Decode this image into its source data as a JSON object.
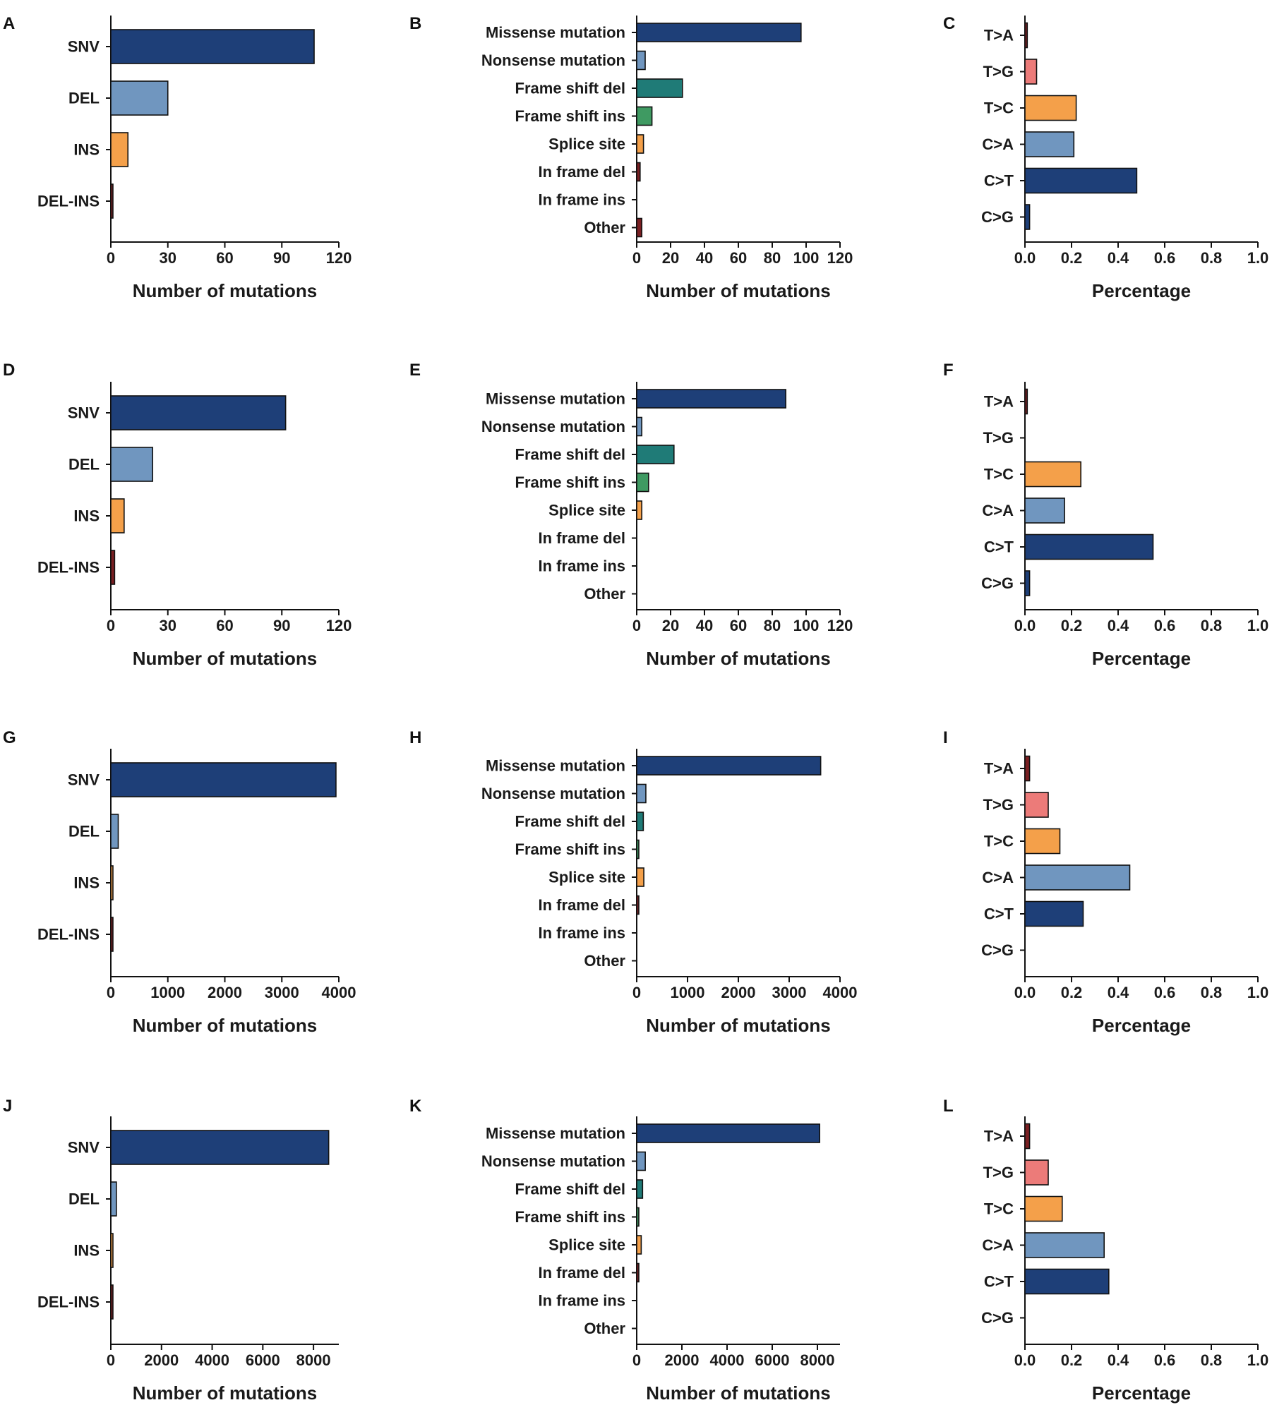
{
  "colors": {
    "navy": "#1e3f78",
    "lightblue": "#7096bf",
    "orange": "#f4a04a",
    "darkred": "#7a1f22",
    "teal": "#1f7b77",
    "green": "#3f9a62",
    "pink": "#ec7b79"
  },
  "chart_data": [
    {
      "id": "A",
      "type": "bar",
      "orientation": "horizontal",
      "categories": [
        "SNV",
        "DEL",
        "INS",
        "DEL-INS"
      ],
      "values": [
        107,
        30,
        9,
        1
      ],
      "colors": [
        "navy",
        "lightblue",
        "orange",
        "darkred"
      ],
      "xlim": [
        0,
        120
      ],
      "xticks": [
        "0",
        "30",
        "60",
        "90",
        "120"
      ],
      "xlabel": "Number of mutations"
    },
    {
      "id": "B",
      "type": "bar",
      "orientation": "horizontal",
      "categories": [
        "Missense mutation",
        "Nonsense mutation",
        "Frame shift del",
        "Frame shift ins",
        "Splice site",
        "In frame del",
        "In frame ins",
        "Other"
      ],
      "values": [
        97,
        5,
        27,
        9,
        4,
        2,
        0,
        3
      ],
      "colors": [
        "navy",
        "lightblue",
        "teal",
        "green",
        "orange",
        "darkred",
        "darkred",
        "darkred"
      ],
      "xlim": [
        0,
        120
      ],
      "xticks": [
        "0",
        "20",
        "40",
        "60",
        "80",
        "100",
        "120"
      ],
      "xlabel": "Number of mutations"
    },
    {
      "id": "C",
      "type": "bar",
      "orientation": "horizontal",
      "categories": [
        "T>A",
        "T>G",
        "T>C",
        "C>A",
        "C>T",
        "C>G"
      ],
      "values": [
        0.01,
        0.05,
        0.22,
        0.21,
        0.48,
        0.02
      ],
      "colors": [
        "darkred",
        "pink",
        "orange",
        "lightblue",
        "navy",
        "navy"
      ],
      "xlim": [
        0,
        1
      ],
      "xticks": [
        "0.0",
        "0.2",
        "0.4",
        "0.6",
        "0.8",
        "1.0"
      ],
      "xlabel": "Percentage"
    },
    {
      "id": "D",
      "type": "bar",
      "orientation": "horizontal",
      "categories": [
        "SNV",
        "DEL",
        "INS",
        "DEL-INS"
      ],
      "values": [
        92,
        22,
        7,
        2
      ],
      "colors": [
        "navy",
        "lightblue",
        "orange",
        "darkred"
      ],
      "xlim": [
        0,
        120
      ],
      "xticks": [
        "0",
        "30",
        "60",
        "90",
        "120"
      ],
      "xlabel": "Number of mutations"
    },
    {
      "id": "E",
      "type": "bar",
      "orientation": "horizontal",
      "categories": [
        "Missense mutation",
        "Nonsense mutation",
        "Frame shift del",
        "Frame shift ins",
        "Splice site",
        "In frame del",
        "In frame ins",
        "Other"
      ],
      "values": [
        88,
        3,
        22,
        7,
        3,
        0,
        0,
        0
      ],
      "colors": [
        "navy",
        "lightblue",
        "teal",
        "green",
        "orange",
        "darkred",
        "darkred",
        "darkred"
      ],
      "xlim": [
        0,
        120
      ],
      "xticks": [
        "0",
        "20",
        "40",
        "60",
        "80",
        "100",
        "120"
      ],
      "xlabel": "Number of mutations"
    },
    {
      "id": "F",
      "type": "bar",
      "orientation": "horizontal",
      "categories": [
        "T>A",
        "T>G",
        "T>C",
        "C>A",
        "C>T",
        "C>G"
      ],
      "values": [
        0.01,
        0,
        0.24,
        0.17,
        0.55,
        0.02
      ],
      "colors": [
        "darkred",
        "pink",
        "orange",
        "lightblue",
        "navy",
        "navy"
      ],
      "xlim": [
        0,
        1
      ],
      "xticks": [
        "0.0",
        "0.2",
        "0.4",
        "0.6",
        "0.8",
        "1.0"
      ],
      "xlabel": "Percentage"
    },
    {
      "id": "G",
      "type": "bar",
      "orientation": "horizontal",
      "categories": [
        "SNV",
        "DEL",
        "INS",
        "DEL-INS"
      ],
      "values": [
        3950,
        130,
        15,
        5
      ],
      "colors": [
        "navy",
        "lightblue",
        "orange",
        "darkred"
      ],
      "xlim": [
        0,
        4000
      ],
      "xticks": [
        "0",
        "1000",
        "2000",
        "3000",
        "4000"
      ],
      "xlabel": "Number of mutations"
    },
    {
      "id": "H",
      "type": "bar",
      "orientation": "horizontal",
      "categories": [
        "Missense mutation",
        "Nonsense mutation",
        "Frame shift del",
        "Frame shift ins",
        "Splice site",
        "In frame del",
        "In frame ins",
        "Other"
      ],
      "values": [
        3620,
        180,
        130,
        10,
        140,
        5,
        0,
        0
      ],
      "colors": [
        "navy",
        "lightblue",
        "teal",
        "green",
        "orange",
        "darkred",
        "darkred",
        "darkred"
      ],
      "xlim": [
        0,
        4000
      ],
      "xticks": [
        "0",
        "1000",
        "2000",
        "3000",
        "4000"
      ],
      "xlabel": "Number of mutations"
    },
    {
      "id": "I",
      "type": "bar",
      "orientation": "horizontal",
      "categories": [
        "T>A",
        "T>G",
        "T>C",
        "C>A",
        "C>T",
        "C>G"
      ],
      "values": [
        0.02,
        0.1,
        0.15,
        0.45,
        0.25,
        0
      ],
      "colors": [
        "darkred",
        "pink",
        "orange",
        "lightblue",
        "navy",
        "navy"
      ],
      "xlim": [
        0,
        1
      ],
      "xticks": [
        "0.0",
        "0.2",
        "0.4",
        "0.6",
        "0.8",
        "1.0"
      ],
      "xlabel": "Percentage"
    },
    {
      "id": "J",
      "type": "bar",
      "orientation": "horizontal",
      "categories": [
        "SNV",
        "DEL",
        "INS",
        "DEL-INS"
      ],
      "values": [
        8600,
        220,
        30,
        10
      ],
      "colors": [
        "navy",
        "lightblue",
        "orange",
        "darkred"
      ],
      "xlim": [
        0,
        9000
      ],
      "xticks": [
        "0",
        "2000",
        "4000",
        "6000",
        "8000"
      ],
      "xlabel": "Number of mutations"
    },
    {
      "id": "K",
      "type": "bar",
      "orientation": "horizontal",
      "categories": [
        "Missense mutation",
        "Nonsense mutation",
        "Frame shift del",
        "Frame shift ins",
        "Splice site",
        "In frame del",
        "In frame ins",
        "Other"
      ],
      "values": [
        8100,
        380,
        260,
        20,
        200,
        10,
        0,
        0
      ],
      "colors": [
        "navy",
        "lightblue",
        "teal",
        "green",
        "orange",
        "darkred",
        "darkred",
        "darkred"
      ],
      "xlim": [
        0,
        9000
      ],
      "xticks": [
        "0",
        "2000",
        "4000",
        "6000",
        "8000"
      ],
      "xlabel": "Number of mutations"
    },
    {
      "id": "L",
      "type": "bar",
      "orientation": "horizontal",
      "categories": [
        "T>A",
        "T>G",
        "T>C",
        "C>A",
        "C>T",
        "C>G"
      ],
      "values": [
        0.02,
        0.1,
        0.16,
        0.34,
        0.36,
        0
      ],
      "colors": [
        "darkred",
        "pink",
        "orange",
        "lightblue",
        "navy",
        "navy"
      ],
      "xlim": [
        0,
        1
      ],
      "xticks": [
        "0.0",
        "0.2",
        "0.4",
        "0.6",
        "0.8",
        "1.0"
      ],
      "xlabel": "Percentage"
    }
  ]
}
